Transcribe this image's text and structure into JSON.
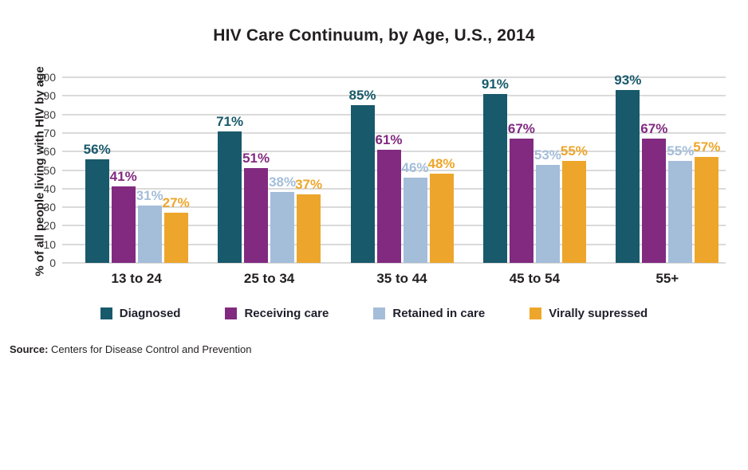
{
  "chart_data": {
    "type": "bar",
    "title": "HIV Care Continuum, by Age, U.S., 2014",
    "ylabel": "% of all people living with HIV by age",
    "xlabel": "",
    "categories": [
      "13 to 24",
      "25 to 34",
      "35 to 44",
      "45 to 54",
      "55+"
    ],
    "series": [
      {
        "name": "Diagnosed",
        "color": "#18596b",
        "values": [
          56,
          71,
          85,
          91,
          93
        ]
      },
      {
        "name": "Receiving care",
        "color": "#812a80",
        "values": [
          41,
          51,
          61,
          67,
          67
        ]
      },
      {
        "name": "Retained in care",
        "color": "#a4bdd9",
        "values": [
          31,
          38,
          46,
          53,
          55
        ]
      },
      {
        "name": "Virally supressed",
        "color": "#eda62b",
        "values": [
          27,
          37,
          48,
          55,
          57
        ]
      }
    ],
    "value_label_format": "{v}%",
    "ylim": [
      0,
      100
    ],
    "ytick_step": 10,
    "grid": true,
    "legend_position": "bottom",
    "colors": {
      "grid": "#dadada",
      "title_text": "#231f20",
      "tick_text": "#3f3f3f"
    }
  },
  "source": {
    "label": "Source:",
    "text": " Centers for Disease Control and Prevention"
  }
}
